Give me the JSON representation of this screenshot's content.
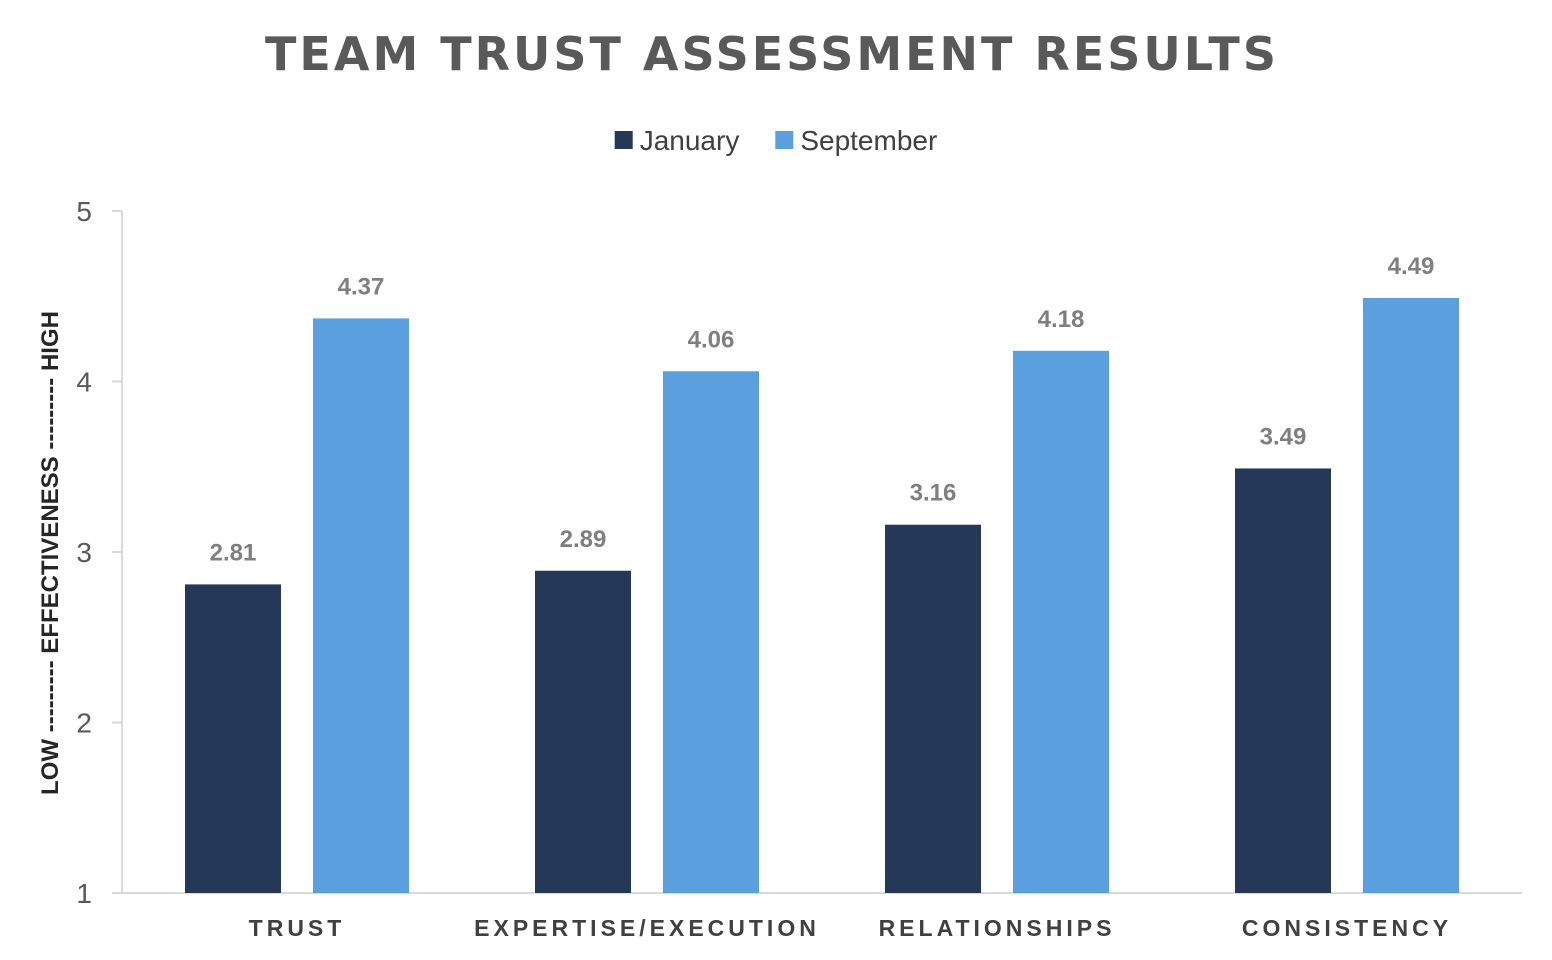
{
  "chart_data": {
    "type": "bar",
    "title": "TEAM TRUST ASSESSMENT RESULTS",
    "ylabel": "LOW --------- EFFECTIVENESS --------- HIGH",
    "xlabel": "",
    "categories": [
      "TRUST",
      "EXPERTISE/EXECUTION",
      "RELATIONSHIPS",
      "CONSISTENCY"
    ],
    "series": [
      {
        "name": "January",
        "values": [
          2.81,
          2.89,
          3.16,
          3.49
        ],
        "color": "#253858"
      },
      {
        "name": "September",
        "values": [
          4.37,
          4.06,
          4.18,
          4.49
        ],
        "color": "#5b9fdf"
      }
    ],
    "ylim": [
      1,
      5
    ],
    "yticks": [
      "1",
      "2",
      "3",
      "4",
      "5"
    ],
    "data_labels": true,
    "grid": false,
    "legend_position": "top-center"
  }
}
